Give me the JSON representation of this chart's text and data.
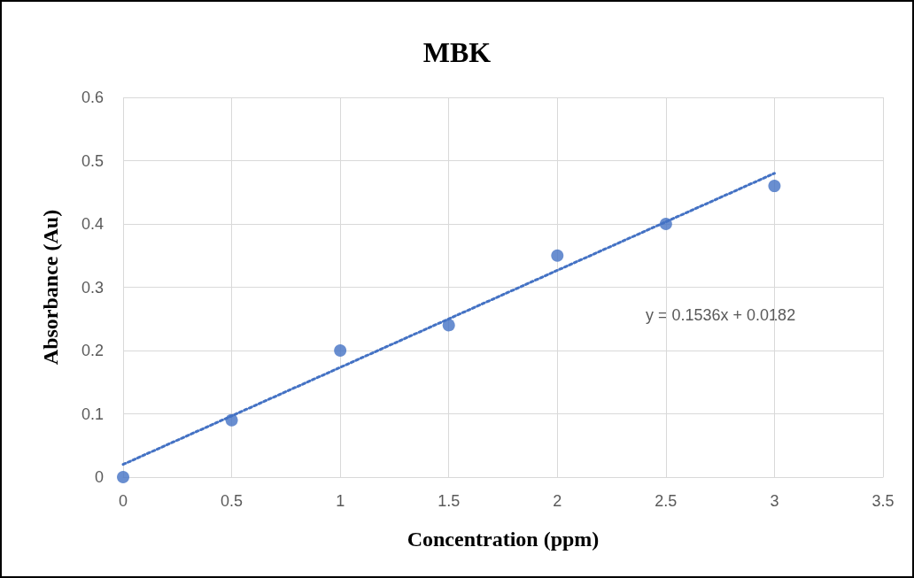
{
  "chart_data": {
    "type": "scatter",
    "title": "MBK",
    "xlabel": "Concentration (ppm)",
    "ylabel": "Absorbance (Au)",
    "x": [
      0,
      0.5,
      1,
      1.5,
      2,
      2.5,
      3
    ],
    "series": [
      {
        "type": "scatter",
        "color": "#4472c4",
        "marker": "circle",
        "values": [
          0,
          0.09,
          0.2,
          0.24,
          0.35,
          0.4,
          0.46
        ]
      },
      {
        "type": "line",
        "color": "#4472c4",
        "line_style": "dotted",
        "marker": "none",
        "x": [
          0,
          3
        ],
        "values": [
          0.02,
          0.48
        ]
      }
    ],
    "xlim": [
      0,
      3.5
    ],
    "xticks": [
      0,
      0.5,
      1,
      1.5,
      2,
      2.5,
      3,
      3.5
    ],
    "ylim": [
      0,
      0.6
    ],
    "yticks": [
      0,
      0.1,
      0.2,
      0.3,
      0.4,
      0.5,
      0.6
    ],
    "grid": true,
    "annotations": [
      "y = 0.1536x + 0.0182"
    ]
  }
}
